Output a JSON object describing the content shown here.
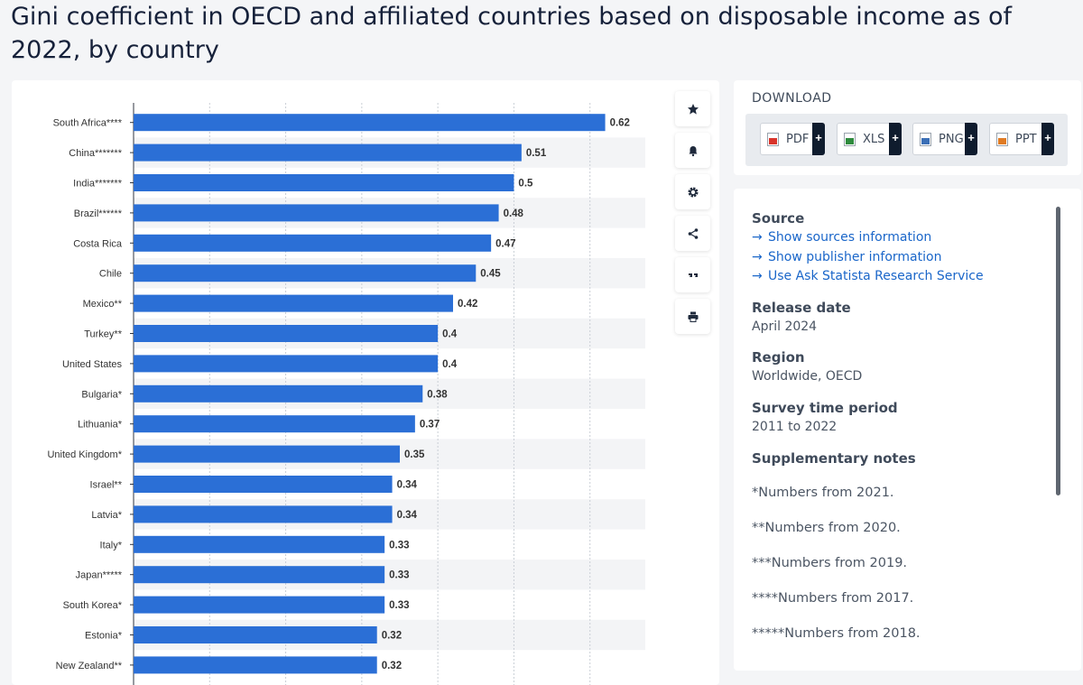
{
  "page": {
    "title": "Gini coefficient in OECD and affiliated countries based on disposable income as of 2022, by country"
  },
  "toolbar": {
    "buttons": [
      {
        "name": "favorite",
        "icon": "star-icon"
      },
      {
        "name": "notify",
        "icon": "bell-icon"
      },
      {
        "name": "settings",
        "icon": "gear-icon"
      },
      {
        "name": "share",
        "icon": "share-icon"
      },
      {
        "name": "cite",
        "icon": "quote-icon"
      },
      {
        "name": "print",
        "icon": "printer-icon"
      }
    ]
  },
  "download": {
    "title": "DOWNLOAD",
    "buttons": [
      {
        "label": "PDF",
        "plus": "+",
        "color": "#d9342b"
      },
      {
        "label": "XLS",
        "plus": "+",
        "color": "#2e8b3d"
      },
      {
        "label": "PNG",
        "plus": "+",
        "color": "#3b6fb6"
      },
      {
        "label": "PPT",
        "plus": "+",
        "color": "#e07b24"
      }
    ]
  },
  "info": {
    "source_heading": "Source",
    "links": [
      "Show sources information",
      "Show publisher information",
      "Use Ask Statista Research Service"
    ],
    "release_heading": "Release date",
    "release_value": "April 2024",
    "region_heading": "Region",
    "region_value": "Worldwide, OECD",
    "period_heading": "Survey time period",
    "period_value": "2011 to 2022",
    "notes_heading": "Supplementary notes",
    "notes": [
      "*Numbers from 2021.",
      "**Numbers from 2020.",
      "***Numbers from 2019.",
      "****Numbers from 2017.",
      "*****Numbers from 2018."
    ]
  },
  "colors": {
    "bar": "#2b6fd6",
    "link": "#1a66c9",
    "band": "#f3f4f6"
  },
  "chart_data": {
    "type": "bar",
    "orientation": "horizontal",
    "categories": [
      "South Africa****",
      "China*******",
      "India*******",
      "Brazil******",
      "Costa Rica",
      "Chile",
      "Mexico**",
      "Turkey**",
      "United States",
      "Bulgaria*",
      "Lithuania*",
      "United Kingdom*",
      "Israel**",
      "Latvia*",
      "Italy*",
      "Japan*****",
      "South Korea*",
      "Estonia*",
      "New Zealand**"
    ],
    "values": [
      0.62,
      0.51,
      0.5,
      0.48,
      0.47,
      0.45,
      0.42,
      0.4,
      0.4,
      0.38,
      0.37,
      0.35,
      0.34,
      0.34,
      0.33,
      0.33,
      0.33,
      0.32,
      0.32
    ],
    "data_labels": [
      "0.62",
      "0.51",
      "0.5",
      "0.48",
      "0.47",
      "0.45",
      "0.42",
      "0.4",
      "0.4",
      "0.38",
      "0.37",
      "0.35",
      "0.34",
      "0.34",
      "0.33",
      "0.33",
      "0.33",
      "0.32",
      "0.32"
    ],
    "xlim": [
      0,
      0.7
    ],
    "grid": true
  }
}
